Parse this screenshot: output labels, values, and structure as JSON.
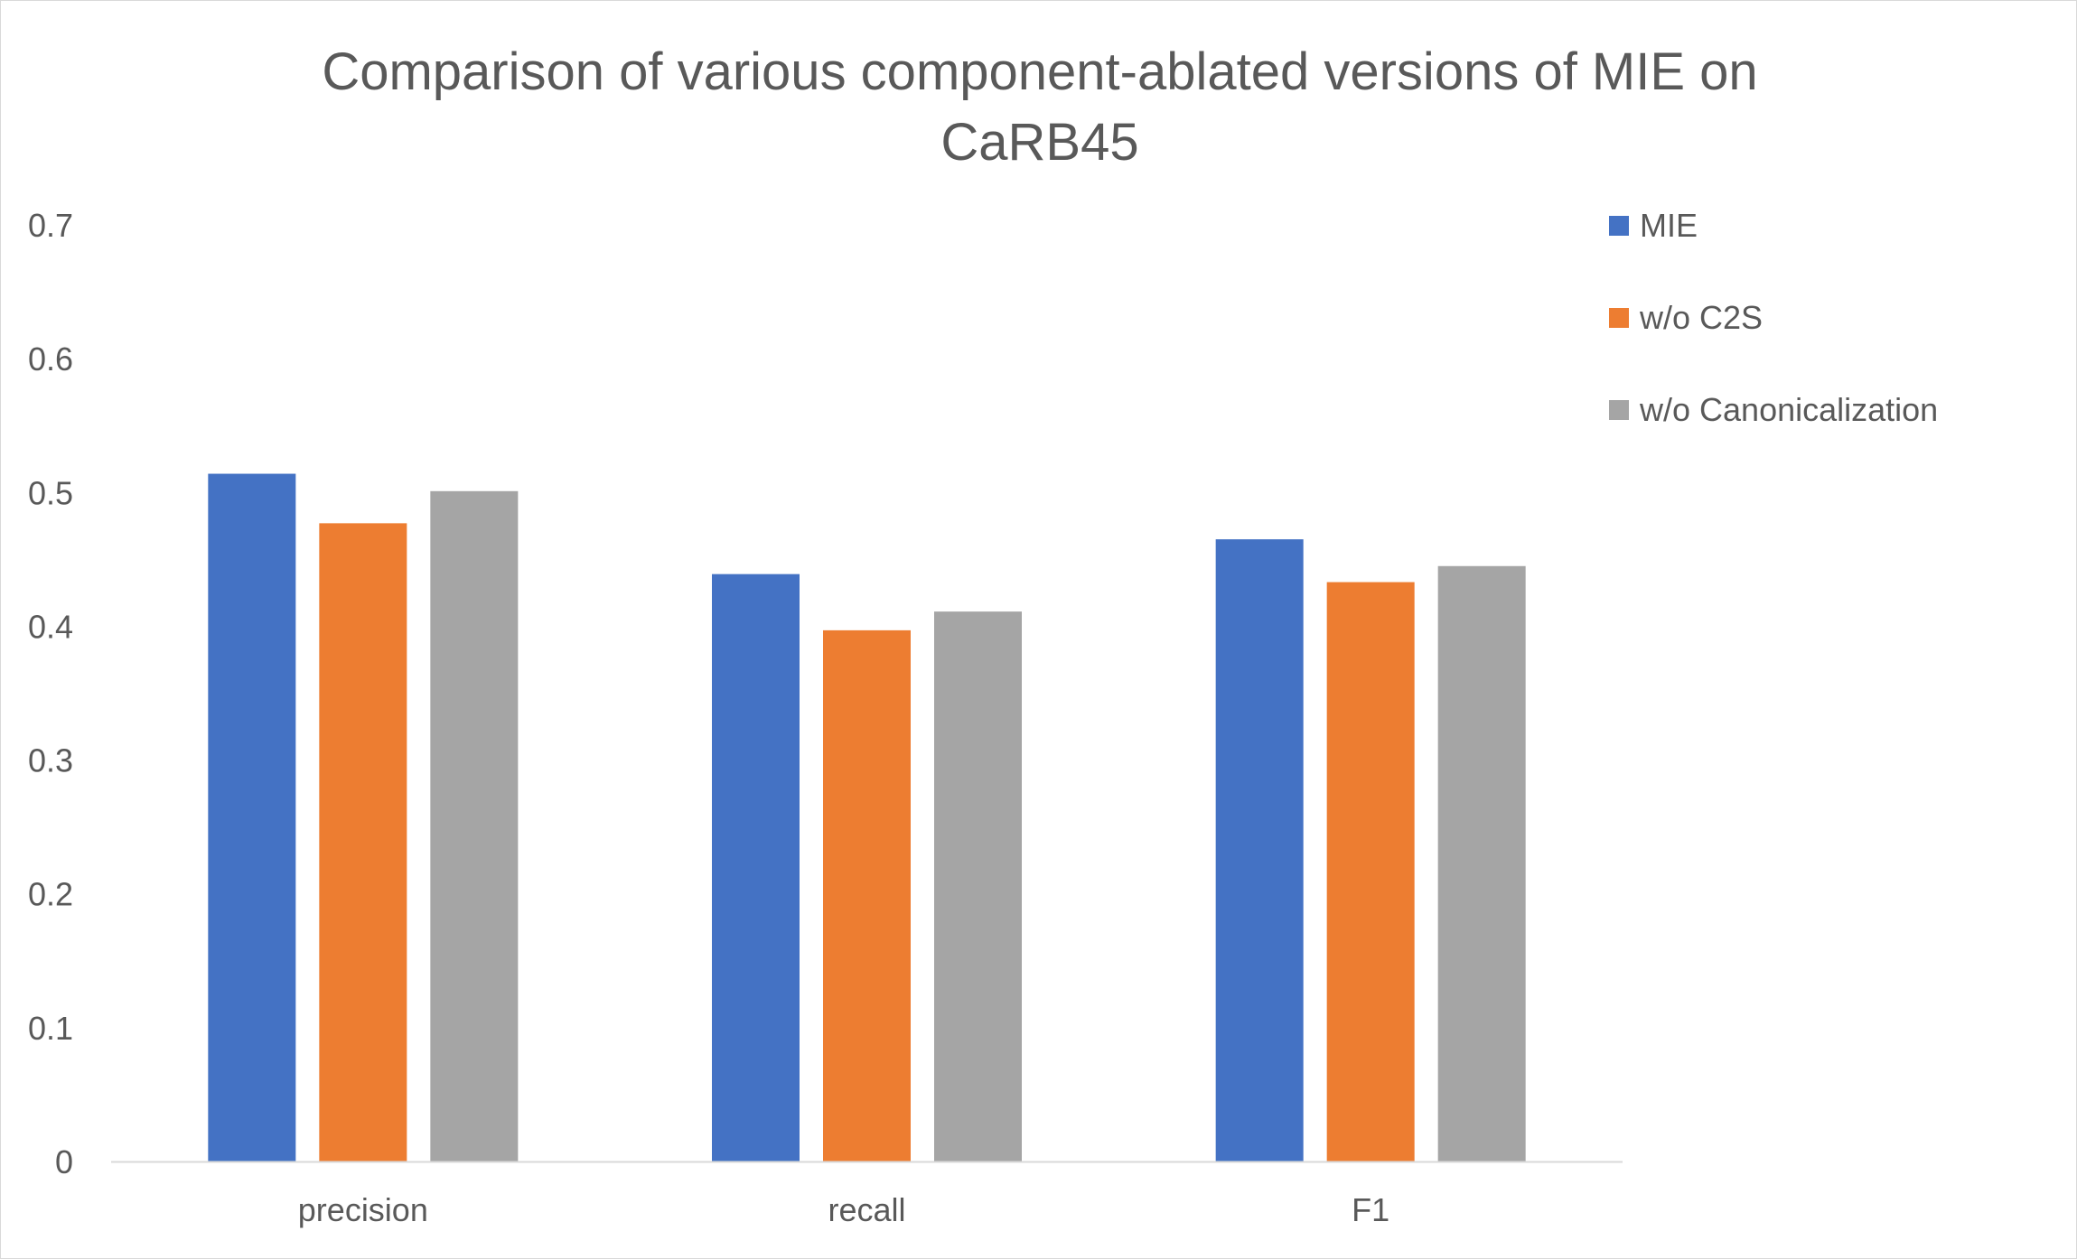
{
  "chart_data": {
    "type": "bar",
    "title": "Comparison of various component-ablated versions of MIE on CaRB45",
    "title_lines": [
      "Comparison of various component-ablated versions of MIE on",
      "CaRB45"
    ],
    "xlabel": "",
    "ylabel": "",
    "categories": [
      "precision",
      "recall",
      "F1"
    ],
    "series": [
      {
        "name": "MIE",
        "color": "#4472C4",
        "values": [
          0.514,
          0.439,
          0.465
        ]
      },
      {
        "name": "w/o C2S",
        "color": "#ED7D31",
        "values": [
          0.477,
          0.397,
          0.433
        ]
      },
      {
        "name": "w/o Canonicalization",
        "color": "#A5A5A5",
        "values": [
          0.501,
          0.411,
          0.445
        ]
      }
    ],
    "ylim": [
      0,
      0.7
    ],
    "yticks": [
      "0",
      "0.1",
      "0.2",
      "0.3",
      "0.4",
      "0.5",
      "0.6",
      "0.7"
    ],
    "grid": false,
    "legend_position": "top-right"
  }
}
